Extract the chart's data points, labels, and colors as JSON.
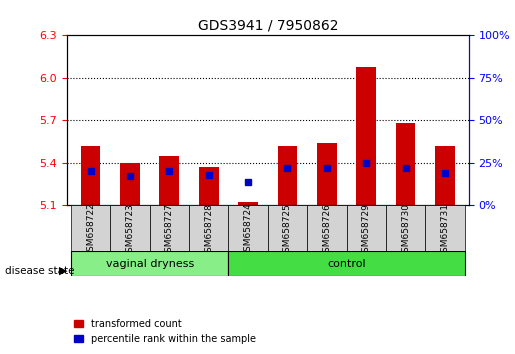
{
  "title": "GDS3941 / 7950862",
  "samples": [
    "GSM658722",
    "GSM658723",
    "GSM658727",
    "GSM658728",
    "GSM658724",
    "GSM658725",
    "GSM658726",
    "GSM658729",
    "GSM658730",
    "GSM658731"
  ],
  "groups": [
    "vaginal dryness",
    "vaginal dryness",
    "vaginal dryness",
    "vaginal dryness",
    "control",
    "control",
    "control",
    "control",
    "control",
    "control"
  ],
  "red_values": [
    5.52,
    5.4,
    5.45,
    5.37,
    5.12,
    5.52,
    5.54,
    6.08,
    5.68,
    5.52
  ],
  "blue_values": [
    20,
    17,
    20,
    18,
    14,
    22,
    22,
    25,
    22,
    19
  ],
  "ymin": 5.1,
  "ymax": 6.3,
  "yticks_left": [
    5.1,
    5.4,
    5.7,
    6.0,
    6.3
  ],
  "yticks_right": [
    0,
    25,
    50,
    75,
    100
  ],
  "bar_color": "#cc0000",
  "blue_color": "#0000cc",
  "group1_color": "#aaffaa",
  "group2_color": "#55ee55",
  "background_color": "#ffffff",
  "plot_bg": "#ffffff",
  "legend_red": "transformed count",
  "legend_blue": "percentile rank within the sample",
  "group_label": "disease state",
  "bar_width": 0.5
}
